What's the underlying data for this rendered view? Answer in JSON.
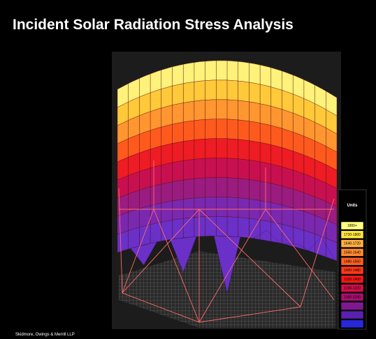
{
  "title": "Incident Solar Radiation Stress Analysis",
  "legend": {
    "heading": "Units",
    "items": [
      {
        "label": "1800+",
        "color": "#ffff80"
      },
      {
        "label": "1720-1800",
        "color": "#ffe640"
      },
      {
        "label": "1640-1720",
        "color": "#ffb040"
      },
      {
        "label": "1560-1640",
        "color": "#ff8a30"
      },
      {
        "label": "1480-1560",
        "color": "#ff6020"
      },
      {
        "label": "1400-1480",
        "color": "#ff3818"
      },
      {
        "label": "1320-1400",
        "color": "#f01818"
      },
      {
        "label": "1240-1320",
        "color": "#d0104a"
      },
      {
        "label": "1160-1240",
        "color": "#a8106e"
      },
      {
        "color": "#801890"
      },
      {
        "color": "#5a20b0"
      },
      {
        "color": "#2828d8"
      }
    ]
  },
  "footer": "Skidmore, Owings & Merrill LLP"
}
